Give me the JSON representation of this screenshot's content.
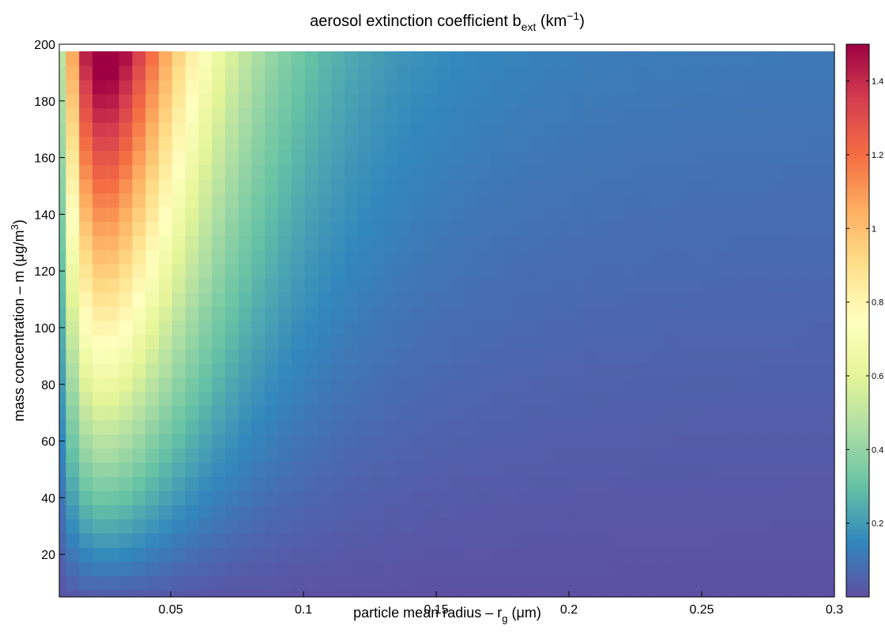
{
  "chart_data": {
    "type": "heatmap",
    "title": {
      "main": "aerosol extinction coefficient b",
      "sub": "ext",
      "unit_open": " (km",
      "unit_sup": "−1",
      "unit_close": ")"
    },
    "xlabel": {
      "main": "particle mean radius – r",
      "sub": "g",
      "unit": " (μm)"
    },
    "ylabel": {
      "main": "mass concentration – m (μg/m",
      "sup": "3",
      "close": ")"
    },
    "xlim": [
      0.008,
      0.3
    ],
    "ylim": [
      5,
      200
    ],
    "x_ticks": [
      0.05,
      0.1,
      0.15,
      0.2,
      0.25,
      0.3
    ],
    "x_tick_labels": [
      "0.05",
      "0.1",
      "0.15",
      "0.2",
      "0.25",
      "0.3"
    ],
    "y_ticks": [
      20,
      40,
      60,
      80,
      100,
      120,
      140,
      160,
      180,
      200
    ],
    "y_tick_labels": [
      "20",
      "40",
      "60",
      "80",
      "100",
      "120",
      "140",
      "160",
      "180",
      "200"
    ],
    "grid": {
      "x_start": 0.008,
      "x_step": 0.005,
      "x_count": 59,
      "y_start": 5,
      "y_step": 5,
      "y_count": 39
    },
    "colorbar": {
      "min": 0,
      "max": 1.5,
      "ticks": [
        0.2,
        0.4,
        0.6,
        0.8,
        1,
        1.2,
        1.4
      ],
      "tick_labels": [
        "0.2",
        "0.4",
        "0.6",
        "0.8",
        "1",
        "1.2",
        "1.4"
      ],
      "colormap": [
        "#5e4fa2",
        "#3288bd",
        "#66c2a5",
        "#abdda4",
        "#e6f598",
        "#ffffbf",
        "#fee08b",
        "#fdae61",
        "#f46d43",
        "#d53e4f",
        "#9e0142"
      ]
    }
  }
}
